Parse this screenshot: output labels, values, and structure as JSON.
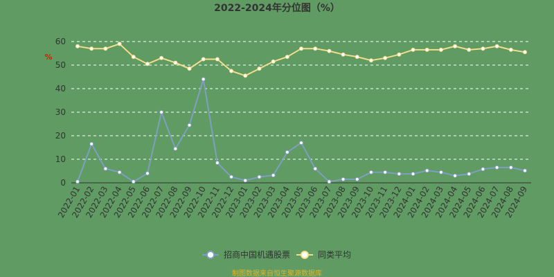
{
  "chart_data": {
    "type": "line",
    "title": "2022-2024年分位图（%）",
    "ylabel": "%",
    "ylim": [
      0,
      60
    ],
    "yticks": [
      0,
      10,
      20,
      30,
      40,
      50,
      60
    ],
    "grid": true,
    "legend_position": "bottom",
    "categories": [
      "2022-01",
      "2022-02",
      "2022-03",
      "2022-04",
      "2022-05",
      "2022-06",
      "2022-07",
      "2022-08",
      "2022-09",
      "2022-10",
      "2022-11",
      "2022-12",
      "2023-01",
      "2023-02",
      "2023-03",
      "2023-04",
      "2023-05",
      "2023-06",
      "2023-07",
      "2023-08",
      "2023-09",
      "2023-10",
      "2023-11",
      "2023-12",
      "2024-01",
      "2024-02",
      "2024-03",
      "2024-04",
      "2024-05",
      "2024-06",
      "2024-07",
      "2024-08",
      "2024-09"
    ],
    "series": [
      {
        "name": "招商中国机遇股票",
        "color": "#7f9fc0",
        "values": [
          0.5,
          16.5,
          6,
          4.5,
          0.5,
          4,
          30,
          14.5,
          24.5,
          44,
          8.5,
          2.5,
          1,
          2.5,
          3.2,
          13,
          17,
          6,
          0.5,
          1.5,
          1.5,
          4.5,
          4.5,
          3.8,
          3.8,
          5.2,
          4.5,
          3,
          3.8,
          5.8,
          6.5,
          6.5,
          5.2
        ]
      },
      {
        "name": "同类平均",
        "color": "#f2de8c",
        "values": [
          58,
          57,
          57,
          59,
          53.5,
          50.5,
          53,
          51,
          48.5,
          52.5,
          52.5,
          47.5,
          45.5,
          48.5,
          51.5,
          53.5,
          57,
          57,
          56,
          54.5,
          53.5,
          52,
          53,
          54.5,
          56.5,
          56.5,
          56.5,
          58,
          56.5,
          57,
          58,
          56.5,
          55.5
        ]
      }
    ]
  },
  "footer": {
    "source": "制图数据来自恒生聚源数据库"
  }
}
